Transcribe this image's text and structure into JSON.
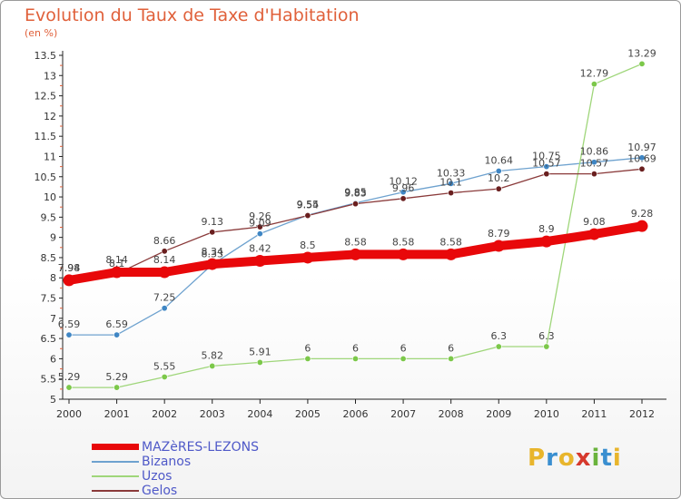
{
  "title": "Evolution du Taux de Taxe d'Habitation",
  "unit_label": "(en %)",
  "logo": {
    "text": "Proxiti",
    "colors": [
      "#e8b52c",
      "#3a8fd0",
      "#e8b52c",
      "#d6392d",
      "#6ab33c",
      "#3a8fd0",
      "#e8b52c"
    ]
  },
  "chart_data": {
    "type": "line",
    "x": [
      "2000",
      "2001",
      "2002",
      "2003",
      "2004",
      "2005",
      "2006",
      "2007",
      "2008",
      "2009",
      "2010",
      "2011",
      "2012"
    ],
    "ylim": [
      5,
      13.5
    ],
    "yticks": [
      "5",
      "5.5",
      "6",
      "6.5",
      "7",
      "7.5",
      "8",
      "8.5",
      "9",
      "9.5",
      "10",
      "10.5",
      "11",
      "11.5",
      "12",
      "12.5",
      "13",
      "13.5"
    ],
    "grid": false,
    "legend_position": "bottom-left",
    "series": [
      {
        "name": "MAZèRES-LEZONS",
        "color": "#e8080a",
        "width": 10,
        "values": [
          7.94,
          8.14,
          8.14,
          8.34,
          8.42,
          8.5,
          8.58,
          8.58,
          8.58,
          8.79,
          8.9,
          9.08,
          9.28
        ],
        "labels": [
          "7.94",
          "8.14",
          "8.14",
          "8.34",
          "8.42",
          "8.5",
          "8.58",
          "8.58",
          "8.58",
          "8.79",
          "8.9",
          "9.08",
          "9.28"
        ]
      },
      {
        "name": "Bizanos",
        "color": "#6ea2cf",
        "dot": "#3f86c4",
        "width": 1.3,
        "values": [
          6.59,
          6.59,
          7.25,
          8.33,
          9.09,
          9.55,
          9.85,
          10.12,
          10.33,
          10.64,
          10.75,
          10.86,
          10.97
        ],
        "labels": [
          "6.59",
          "6.59",
          "7.25",
          "8.33",
          "9.09",
          "9.55",
          "9.85",
          "10.12",
          "10.33",
          "10.64",
          "10.75",
          "10.86",
          "10.97"
        ]
      },
      {
        "name": "Uzos",
        "color": "#9fd67a",
        "dot": "#7cc84a",
        "width": 1.3,
        "values": [
          5.29,
          5.29,
          5.55,
          5.82,
          5.91,
          6,
          6,
          6,
          6,
          6.3,
          6.3,
          12.79,
          13.29
        ],
        "labels": [
          "5.29",
          "5.29",
          "5.55",
          "5.82",
          "5.91",
          "6",
          "6",
          "6",
          "6",
          "6.3",
          "6.3",
          "12.79",
          "13.29"
        ]
      },
      {
        "name": "Gelos",
        "color": "#8a3a3a",
        "dot": "#6a1f1f",
        "width": 1.3,
        "values": [
          7.98,
          8.1,
          8.66,
          9.13,
          9.26,
          9.54,
          9.83,
          9.96,
          10.1,
          10.2,
          10.57,
          10.57,
          10.69
        ],
        "labels": [
          "7.98",
          "8.1",
          "8.66",
          "9.13",
          "9.26",
          "9.54",
          "9.83",
          "9.96",
          "10.1",
          "10.2",
          "10.57",
          "10.57",
          "10.69"
        ]
      }
    ]
  }
}
